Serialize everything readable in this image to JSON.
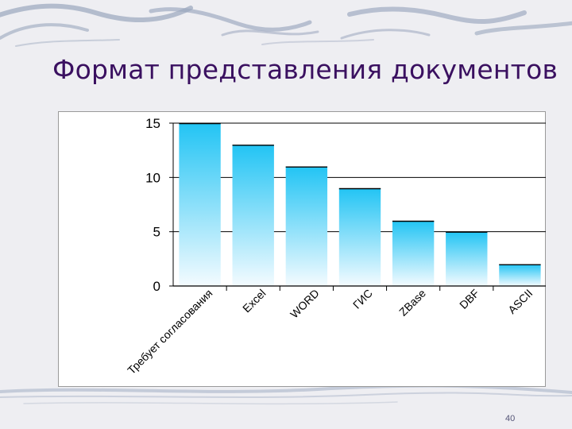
{
  "slide": {
    "title": "Формат представления документов",
    "page_number": "40"
  },
  "colors": {
    "title": "#3a1060",
    "bar_top": "#22c4f4",
    "bar_bottom": "#f4fbff",
    "background": "#eeeef2",
    "decoration": "#9aa6bd"
  },
  "chart_data": {
    "type": "bar",
    "title": "",
    "xlabel": "",
    "ylabel": "",
    "categories": [
      "Требует согласования",
      "Excel",
      "WORD",
      "ГИС",
      "ZBase",
      "DBF",
      "ASCII"
    ],
    "values": [
      15,
      13,
      11,
      9,
      6,
      5,
      2
    ],
    "ylim": [
      0,
      15
    ],
    "yticks": [
      "0",
      "5",
      "10",
      "15"
    ],
    "grid": true,
    "legend": "none"
  }
}
